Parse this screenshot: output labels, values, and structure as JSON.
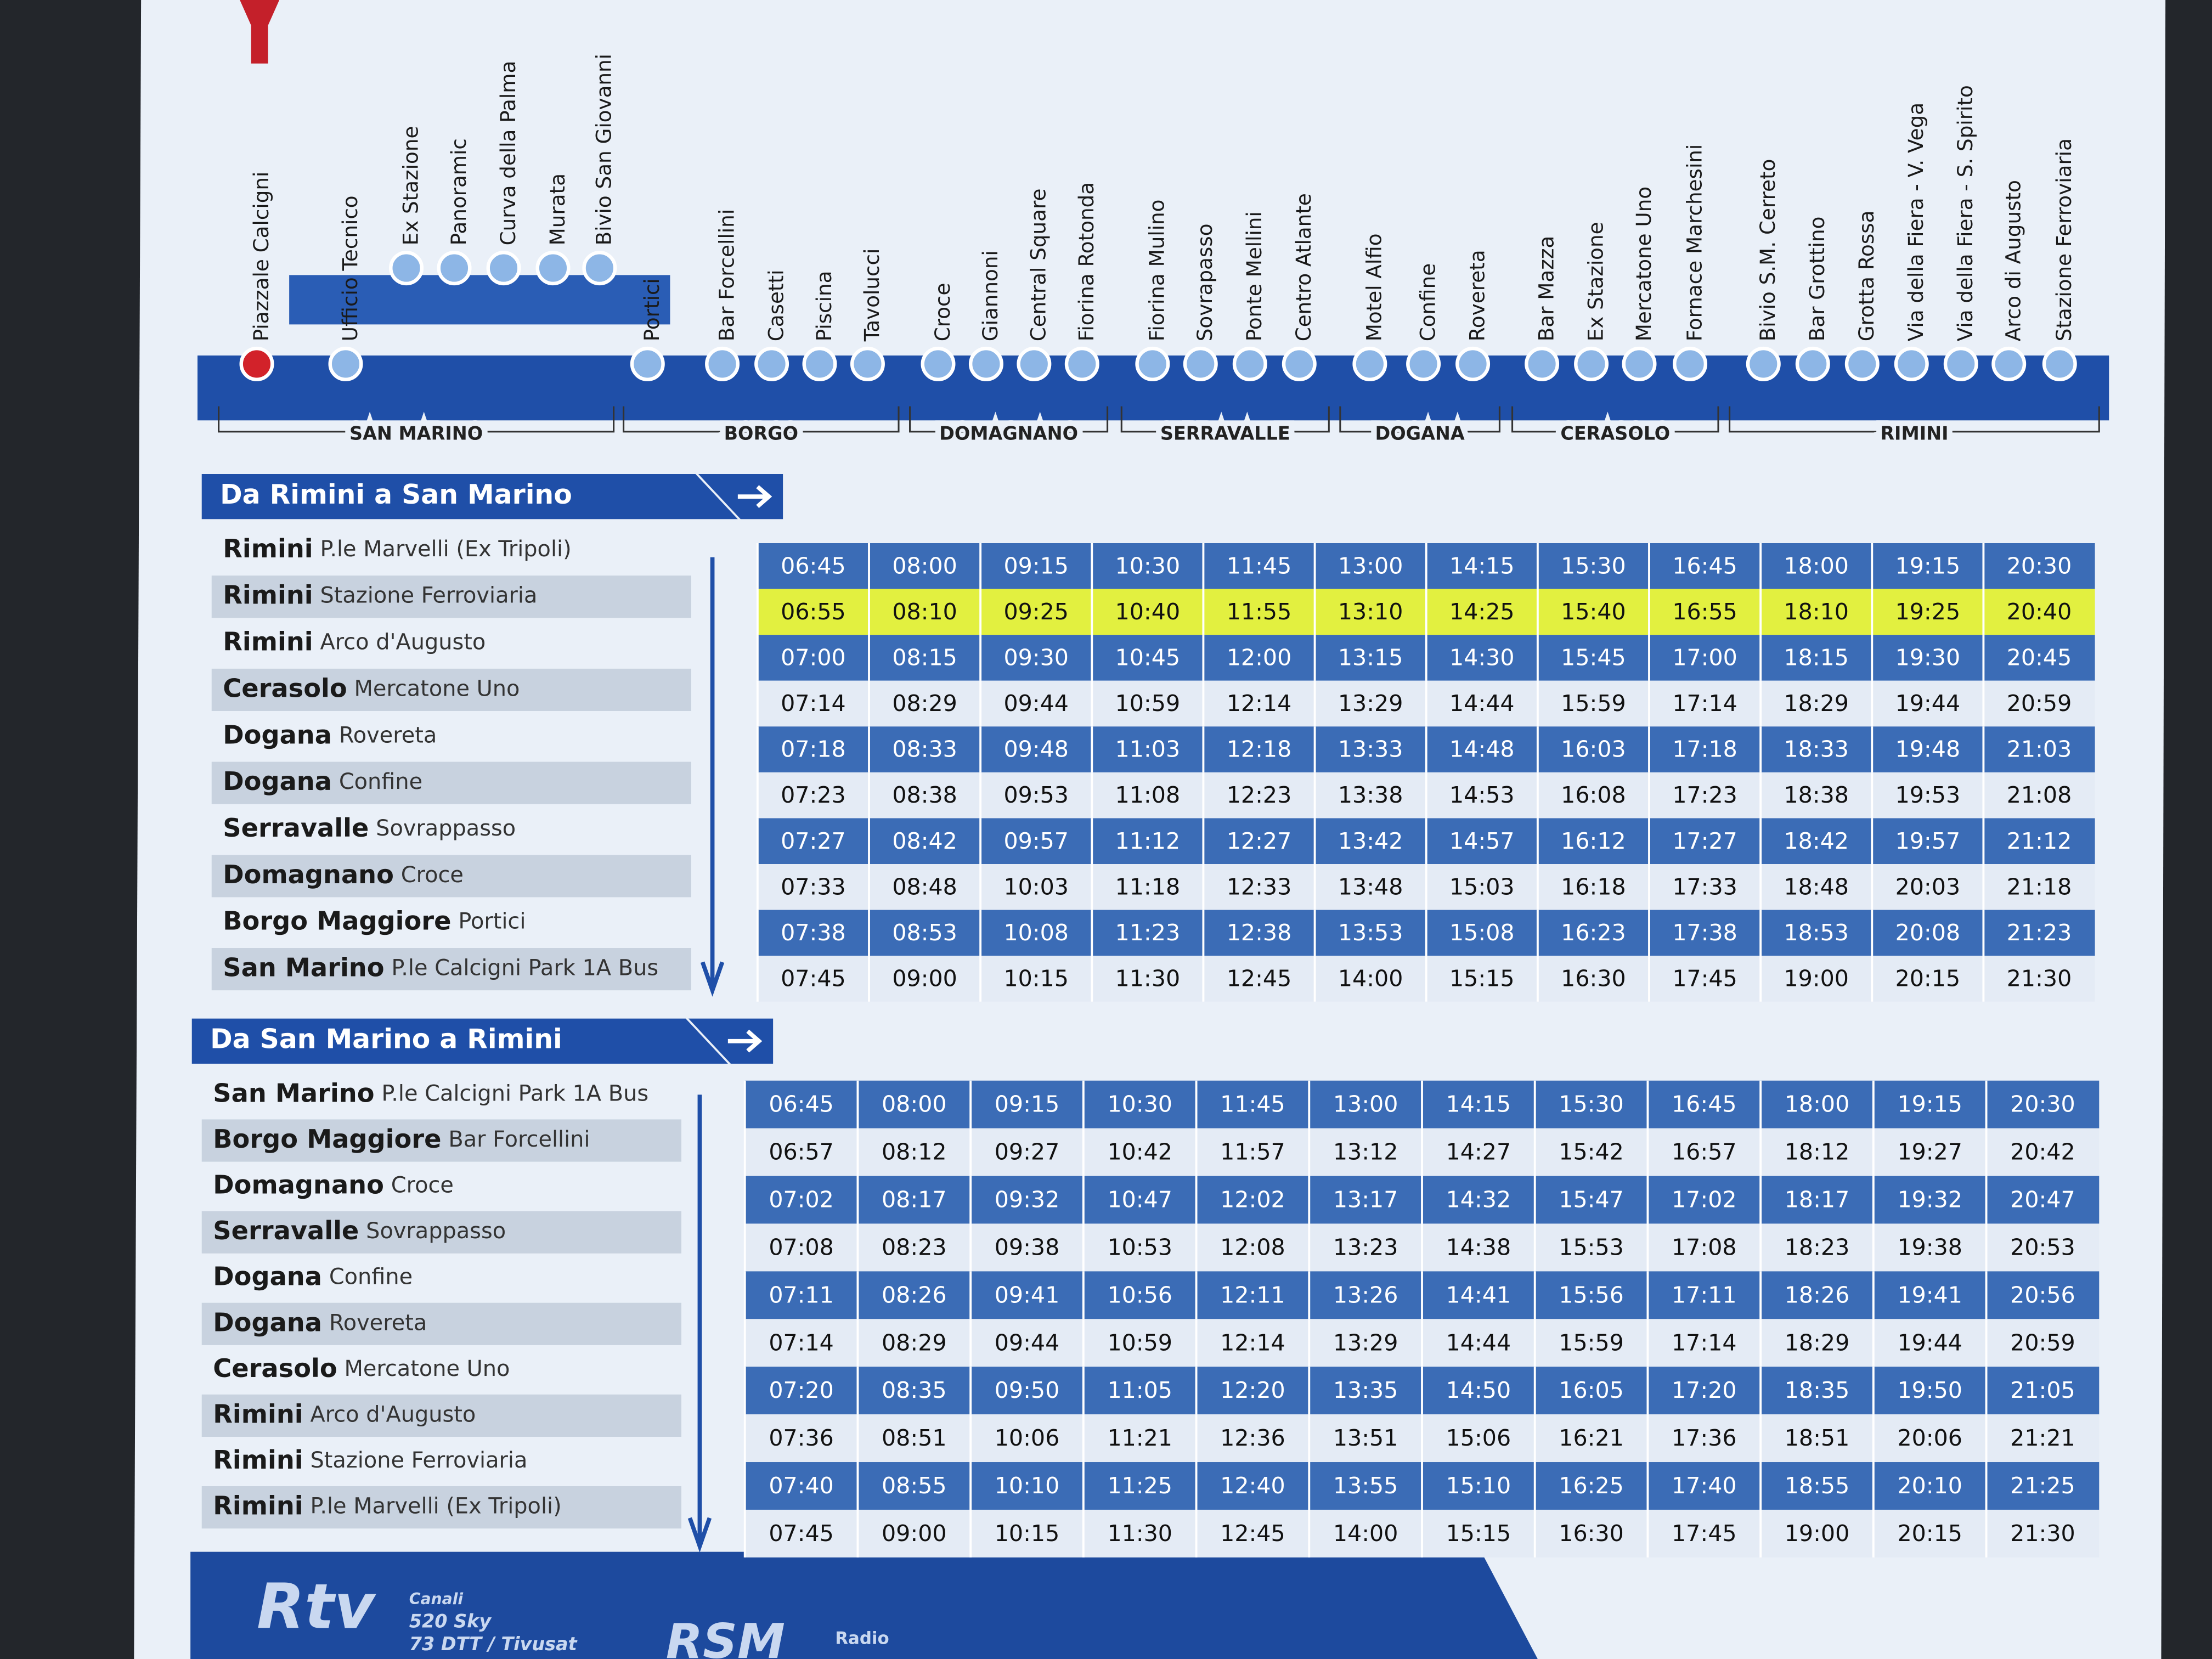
{
  "route": {
    "stops": [
      "Piazzale Calcigni",
      "Ufficio Tecnico",
      "Ex Stazione",
      "Panoramic",
      "Curva della Palma",
      "Murata",
      "Bivio San Giovanni",
      "Portici",
      "Bar Forcellini",
      "Casetti",
      "Piscina",
      "Tavolucci",
      "Croce",
      "Giannoni",
      "Central Square",
      "Fiorina Rotonda",
      "Fiorina Mulino",
      "Sovrapasso",
      "Ponte Mellini",
      "Centro Atlante",
      "Motel Alfio",
      "Confine",
      "Rovereta",
      "Bar Mazza",
      "Ex Stazione",
      "Mercatone Uno",
      "Fornace Marchesini",
      "Bivio S.M. Cerreto",
      "Bar Grottino",
      "Grotta Rossa",
      "Via della Fiera - V. Vega",
      "Via della Fiera - S. Spirito",
      "Arco di Augusto",
      "Stazione Ferroviaria"
    ],
    "zones": [
      "SAN MARINO",
      "BORGO",
      "DOMAGNANO",
      "SERRAVALLE",
      "DOGANA",
      "CERASOLO",
      "RIMINI"
    ]
  },
  "timetables": [
    {
      "title": "Da Rimini a San Marino",
      "rows": [
        {
          "town": "Rimini",
          "stop": "P.le Marvelli (Ex Tripoli)",
          "times": [
            "06:45",
            "08:00",
            "09:15",
            "10:30",
            "11:45",
            "13:00",
            "14:15",
            "15:30",
            "16:45",
            "18:00",
            "19:15",
            "20:30"
          ]
        },
        {
          "town": "Rimini",
          "stop": "Stazione Ferroviaria",
          "times": [
            "06:55",
            "08:10",
            "09:25",
            "10:40",
            "11:55",
            "13:10",
            "14:25",
            "15:40",
            "16:55",
            "18:10",
            "19:25",
            "20:40"
          ]
        },
        {
          "town": "Rimini",
          "stop": "Arco d'Augusto",
          "times": [
            "07:00",
            "08:15",
            "09:30",
            "10:45",
            "12:00",
            "13:15",
            "14:30",
            "15:45",
            "17:00",
            "18:15",
            "19:30",
            "20:45"
          ]
        },
        {
          "town": "Cerasolo",
          "stop": "Mercatone Uno",
          "times": [
            "07:14",
            "08:29",
            "09:44",
            "10:59",
            "12:14",
            "13:29",
            "14:44",
            "15:59",
            "17:14",
            "18:29",
            "19:44",
            "20:59"
          ]
        },
        {
          "town": "Dogana",
          "stop": "Rovereta",
          "times": [
            "07:18",
            "08:33",
            "09:48",
            "11:03",
            "12:18",
            "13:33",
            "14:48",
            "16:03",
            "17:18",
            "18:33",
            "19:48",
            "21:03"
          ]
        },
        {
          "town": "Dogana",
          "stop": "Confine",
          "times": [
            "07:23",
            "08:38",
            "09:53",
            "11:08",
            "12:23",
            "13:38",
            "14:53",
            "16:08",
            "17:23",
            "18:38",
            "19:53",
            "21:08"
          ]
        },
        {
          "town": "Serravalle",
          "stop": "Sovrappasso",
          "times": [
            "07:27",
            "08:42",
            "09:57",
            "11:12",
            "12:27",
            "13:42",
            "14:57",
            "16:12",
            "17:27",
            "18:42",
            "19:57",
            "21:12"
          ]
        },
        {
          "town": "Domagnano",
          "stop": "Croce",
          "times": [
            "07:33",
            "08:48",
            "10:03",
            "11:18",
            "12:33",
            "13:48",
            "15:03",
            "16:18",
            "17:33",
            "18:48",
            "20:03",
            "21:18"
          ]
        },
        {
          "town": "Borgo Maggiore",
          "stop": "Portici",
          "times": [
            "07:38",
            "08:53",
            "10:08",
            "11:23",
            "12:38",
            "13:53",
            "15:08",
            "16:23",
            "17:38",
            "18:53",
            "20:08",
            "21:23"
          ]
        },
        {
          "town": "San Marino",
          "stop": "P.le Calcigni Park 1A Bus",
          "times": [
            "07:45",
            "09:00",
            "10:15",
            "11:30",
            "12:45",
            "14:00",
            "15:15",
            "16:30",
            "17:45",
            "19:00",
            "20:15",
            "21:30"
          ]
        }
      ]
    },
    {
      "title": "Da San Marino a Rimini",
      "rows": [
        {
          "town": "San Marino",
          "stop": "P.le Calcigni Park 1A Bus",
          "times": [
            "06:45",
            "08:00",
            "09:15",
            "10:30",
            "11:45",
            "13:00",
            "14:15",
            "15:30",
            "16:45",
            "18:00",
            "19:15",
            "20:30"
          ]
        },
        {
          "town": "Borgo Maggiore",
          "stop": "Bar Forcellini",
          "times": [
            "06:57",
            "08:12",
            "09:27",
            "10:42",
            "11:57",
            "13:12",
            "14:27",
            "15:42",
            "16:57",
            "18:12",
            "19:27",
            "20:42"
          ]
        },
        {
          "town": "Domagnano",
          "stop": "Croce",
          "times": [
            "07:02",
            "08:17",
            "09:32",
            "10:47",
            "12:02",
            "13:17",
            "14:32",
            "15:47",
            "17:02",
            "18:17",
            "19:32",
            "20:47"
          ]
        },
        {
          "town": "Serravalle",
          "stop": "Sovrappasso",
          "times": [
            "07:08",
            "08:23",
            "09:38",
            "10:53",
            "12:08",
            "13:23",
            "14:38",
            "15:53",
            "17:08",
            "18:23",
            "19:38",
            "20:53"
          ]
        },
        {
          "town": "Dogana",
          "stop": "Confine",
          "times": [
            "07:11",
            "08:26",
            "09:41",
            "10:56",
            "12:11",
            "13:26",
            "14:41",
            "15:56",
            "17:11",
            "18:26",
            "19:41",
            "20:56"
          ]
        },
        {
          "town": "Dogana",
          "stop": "Rovereta",
          "times": [
            "07:14",
            "08:29",
            "09:44",
            "10:59",
            "12:14",
            "13:29",
            "14:44",
            "15:59",
            "17:14",
            "18:29",
            "19:44",
            "20:59"
          ]
        },
        {
          "town": "Cerasolo",
          "stop": "Mercatone Uno",
          "times": [
            "07:20",
            "08:35",
            "09:50",
            "11:05",
            "12:20",
            "13:35",
            "14:50",
            "16:05",
            "17:20",
            "18:35",
            "19:50",
            "21:05"
          ]
        },
        {
          "town": "Rimini",
          "stop": "Arco d'Augusto",
          "times": [
            "07:36",
            "08:51",
            "10:06",
            "11:21",
            "12:36",
            "13:51",
            "15:06",
            "16:21",
            "17:36",
            "18:51",
            "20:06",
            "21:21"
          ]
        },
        {
          "town": "Rimini",
          "stop": "Stazione Ferroviaria",
          "times": [
            "07:40",
            "08:55",
            "10:10",
            "11:25",
            "12:40",
            "13:55",
            "15:10",
            "16:25",
            "17:40",
            "18:55",
            "20:10",
            "21:25"
          ]
        },
        {
          "town": "Rimini",
          "stop": "P.le Marvelli (Ex Tripoli)",
          "times": [
            "07:45",
            "09:00",
            "10:15",
            "11:30",
            "12:45",
            "14:00",
            "15:15",
            "16:30",
            "17:45",
            "19:00",
            "20:15",
            "21:30"
          ]
        }
      ]
    }
  ],
  "footer": {
    "logo": "Rtv",
    "channels": [
      "Canali",
      "520 Sky",
      "73 DTT / Tivusat"
    ],
    "radio_logo": "RSM",
    "radio": "Radio"
  }
}
